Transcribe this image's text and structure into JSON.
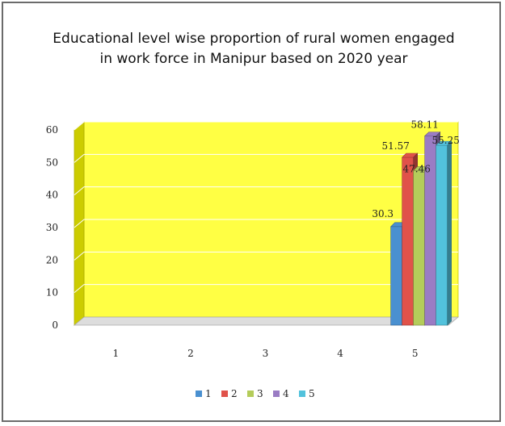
{
  "chart_data": {
    "type": "bar",
    "title": "Educational level wise proportion of rural women engaged in work force in Manipur based on 2020 year",
    "categories": [
      "1",
      "2",
      "3",
      "4",
      "5"
    ],
    "series": [
      {
        "name": "1",
        "color": "#4a90d0",
        "values": [
          null,
          null,
          null,
          null,
          30.3
        ]
      },
      {
        "name": "2",
        "color": "#e0524a",
        "values": [
          null,
          null,
          null,
          null,
          51.57
        ]
      },
      {
        "name": "3",
        "color": "#b4cc5a",
        "values": [
          null,
          null,
          null,
          null,
          47.46
        ]
      },
      {
        "name": "4",
        "color": "#9a7cc4",
        "values": [
          null,
          null,
          null,
          null,
          58.11
        ]
      },
      {
        "name": "5",
        "color": "#52c2dc",
        "values": [
          null,
          null,
          null,
          null,
          55.25
        ]
      }
    ],
    "data_labels": [
      "30.3",
      "51.57",
      "47.46",
      "58.11",
      "55.25"
    ],
    "yticks": [
      "0",
      "10",
      "20",
      "30",
      "40",
      "50",
      "60"
    ],
    "ylim": [
      0,
      60
    ],
    "xlabel": "",
    "ylabel": "",
    "grid": true,
    "plot_background": "#ffff44",
    "legend": "bottom"
  }
}
